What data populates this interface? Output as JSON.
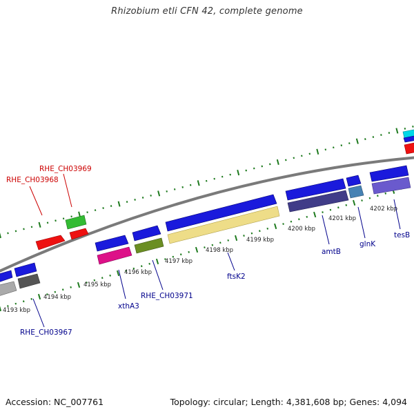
{
  "title": "Rhizobium etli CFN 42, complete genome",
  "footer": {
    "accession": "Accession: NC_007761",
    "summary": "Topology: circular; Length: 4,381,608 bp; Genes: 4,094"
  },
  "colors": {
    "background": "#ffffff",
    "backbone": "#7a7a7a",
    "tick": "#1e7a1e",
    "label_red": "#cc0000",
    "label_blue": "#00008b",
    "scale_text": "#222222"
  },
  "scale_labels": [
    "4193 kbp",
    "4194 kbp",
    "4195 kbp",
    "4196 kbp",
    "4197 kbp",
    "4198 kbp",
    "4199 kbp",
    "4200 kbp",
    "4201 kbp",
    "4202 kbp"
  ],
  "gene_labels": [
    {
      "text": "RHE_CH03968",
      "color": "red"
    },
    {
      "text": "RHE_CH03969",
      "color": "red"
    },
    {
      "text": "RHE_CH03967",
      "color": "blue"
    },
    {
      "text": "xthA3",
      "color": "blue"
    },
    {
      "text": "RHE_CH03971",
      "color": "blue"
    },
    {
      "text": "ftsK2",
      "color": "blue"
    },
    {
      "text": "amtB",
      "color": "blue"
    },
    {
      "text": "glnK",
      "color": "blue"
    },
    {
      "text": "tesB",
      "color": "blue"
    }
  ],
  "features": [
    {
      "name": "feature-red-1",
      "color": "#ee1111"
    },
    {
      "name": "feature-red-2",
      "color": "#ee1111"
    },
    {
      "name": "feature-green",
      "color": "#33bb33"
    },
    {
      "name": "feature-blue-left-1",
      "color": "#1a1adc"
    },
    {
      "name": "feature-grey-left-1",
      "color": "#aaaaaa"
    },
    {
      "name": "feature-blue-left-2",
      "color": "#1a1adc"
    },
    {
      "name": "feature-grey-left-2",
      "color": "#555555"
    },
    {
      "name": "feature-blue-xthA3",
      "color": "#1a1adc"
    },
    {
      "name": "feature-magenta-xthA3",
      "color": "#dd1188"
    },
    {
      "name": "feature-blue-RHE_CH03971",
      "color": "#1a1adc"
    },
    {
      "name": "feature-olive-RHE_CH03971",
      "color": "#6b8e23"
    },
    {
      "name": "feature-blue-ftsK2",
      "color": "#1a1adc"
    },
    {
      "name": "feature-yellow-ftsK2",
      "color": "#eedd88"
    },
    {
      "name": "feature-blue-amtB",
      "color": "#1a1adc"
    },
    {
      "name": "feature-purple-amtB",
      "color": "#403c88"
    },
    {
      "name": "feature-blue-glnK",
      "color": "#1a1adc"
    },
    {
      "name": "feature-steel-glnK",
      "color": "#4682b4"
    },
    {
      "name": "feature-blue-tesB",
      "color": "#1a1adc"
    },
    {
      "name": "feature-violet-tesB",
      "color": "#6a5acd"
    },
    {
      "name": "feature-cyan-edge",
      "color": "#00d8e8"
    },
    {
      "name": "feature-blue-edge",
      "color": "#1a1adc"
    },
    {
      "name": "feature-red-edge",
      "color": "#ee1111"
    }
  ]
}
